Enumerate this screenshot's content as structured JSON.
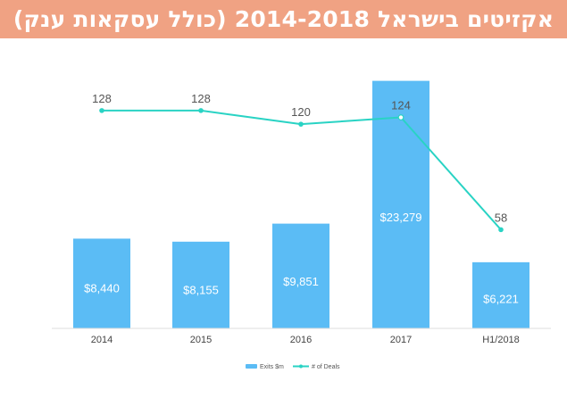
{
  "banner": {
    "title": "אקזיטים בישראל 2014-2018 (כולל עסקאות ענק)",
    "background": "#f0a283"
  },
  "chart_data": {
    "type": "bar",
    "categories": [
      "2014",
      "2015",
      "2016",
      "2017",
      "H1/2018"
    ],
    "series": [
      {
        "name": "Exits $m",
        "type": "bar",
        "color": "#5bbcf5",
        "values": [
          8440,
          8155,
          9851,
          23279,
          6221
        ],
        "labels": [
          "$8,440",
          "$8,155",
          "$9,851",
          "$23,279",
          "$6,221"
        ]
      },
      {
        "name": "# of Deals",
        "type": "line",
        "color": "#29d3c4",
        "values": [
          128,
          128,
          120,
          124,
          58
        ],
        "labels": [
          "128",
          "128",
          "120",
          "124",
          "58"
        ]
      }
    ],
    "legend": "bottom-center",
    "grid": false
  }
}
